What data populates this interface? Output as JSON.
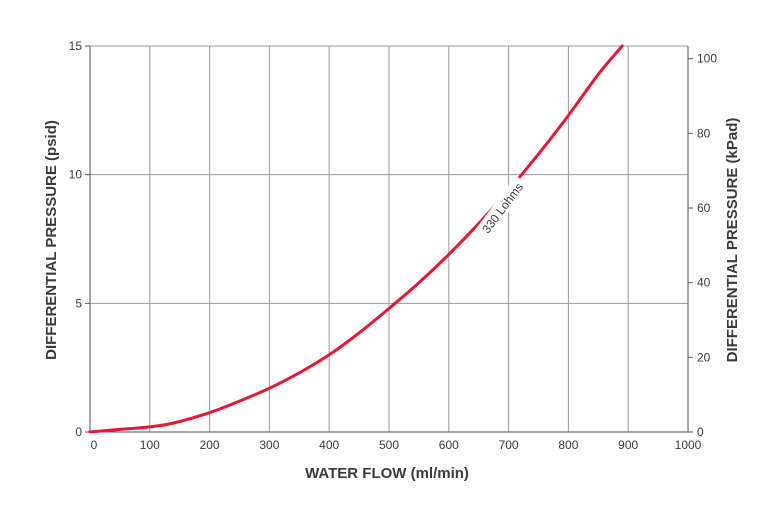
{
  "chart_data": {
    "type": "line",
    "title": "",
    "xlabel": "WATER FLOW (ml/min)",
    "ylabel": "DIFFERENTIAL PRESSURE (psid)",
    "y2label": "DIFFERENTIAL PRESSURE (kPad)",
    "xlim": [
      0,
      1000
    ],
    "ylim": [
      0,
      15
    ],
    "y2lim": [
      0,
      103.4
    ],
    "grid": true,
    "x_ticks": [
      "0",
      "100",
      "200",
      "300",
      "400",
      "500",
      "600",
      "700",
      "800",
      "900",
      "1000"
    ],
    "y_ticks": [
      "0",
      "5",
      "10",
      "15"
    ],
    "y2_ticks": [
      "0",
      "20",
      "40",
      "60",
      "80",
      "100"
    ],
    "series": [
      {
        "name": "330 Lohms",
        "color": "#e31837",
        "x": [
          0,
          50,
          100,
          140,
          200,
          250,
          300,
          350,
          400,
          450,
          500,
          550,
          600,
          650,
          700,
          750,
          800,
          850,
          890
        ],
        "y": [
          0.0,
          0.1,
          0.2,
          0.35,
          0.75,
          1.2,
          1.7,
          2.3,
          3.0,
          3.85,
          4.8,
          5.8,
          6.9,
          8.1,
          9.4,
          10.8,
          12.3,
          13.9,
          15.0
        ]
      }
    ],
    "annotations": [
      {
        "text": "330 Lohms",
        "x": 690,
        "y": 8.7
      }
    ]
  }
}
